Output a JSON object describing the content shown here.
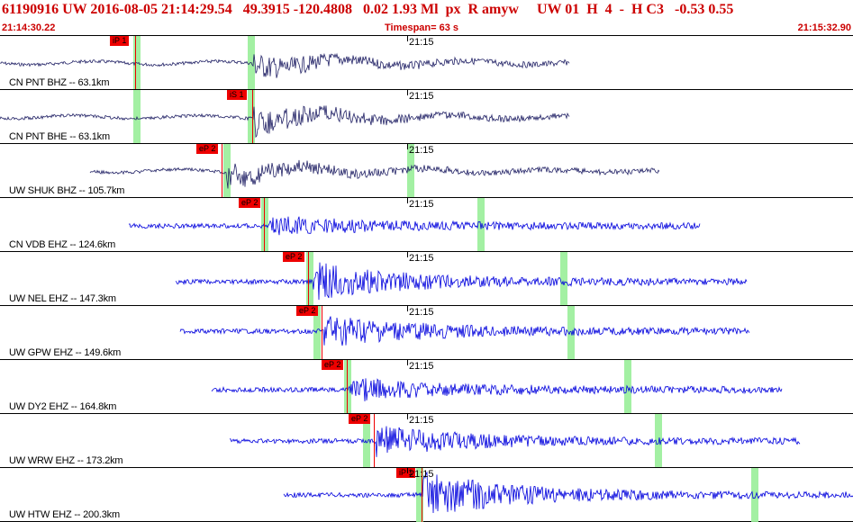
{
  "header": {
    "event_id": "61190916",
    "network": "UW",
    "datetime": "2016-08-05 21:14:29.54",
    "lat": "49.3915",
    "lon": "-120.4808",
    "depth": "0.02",
    "magnitude": "1.93 Ml",
    "px": "px",
    "R": "R",
    "author": "amyw",
    "code1": "UW 01",
    "H": "H",
    "four": "4",
    "dash": "-",
    "hc3": "H C3",
    "v1": "-0.53",
    "v2": "0.55",
    "start_time": "21:14:30.22",
    "timespan": "Timespan=  63 s",
    "end_time": "21:15:32.90"
  },
  "colors": {
    "header_red": "#cc0000",
    "pick_red": "#ee0000",
    "window_green": "#99ee99",
    "trace_dark": "#222266",
    "trace_blue": "#0000dd"
  },
  "panels": [
    {
      "label": "CN PNT BHZ -- 63.1km",
      "pick": "iP 1",
      "tick": "21:15",
      "color": "dark"
    },
    {
      "label": "CN PNT BHE -- 63.1km",
      "pick": "iS 1",
      "tick": "21:15",
      "color": "dark"
    },
    {
      "label": "UW SHUK BHZ -- 105.7km",
      "pick": "eP 2",
      "tick": "21:15",
      "color": "dark"
    },
    {
      "label": "CN VDB EHZ -- 124.6km",
      "pick": "eP 2",
      "tick": "21:15",
      "color": "blue"
    },
    {
      "label": "UW NEL EHZ -- 147.3km",
      "pick": "eP 2",
      "tick": "21:15",
      "color": "blue"
    },
    {
      "label": "UW GPW EHZ -- 149.6km",
      "pick": "eP 2",
      "tick": "21:15",
      "color": "blue"
    },
    {
      "label": "UW DY2 EHZ -- 164.8km",
      "pick": "eP 2",
      "tick": "21:15",
      "color": "blue"
    },
    {
      "label": "UW WRW EHZ -- 173.2km",
      "pick": "eP 2",
      "tick": "21:15",
      "color": "blue"
    },
    {
      "label": "UW HTW EHZ -- 200.3km",
      "pick": "iP 1",
      "tick": "21:15",
      "color": "blue"
    }
  ]
}
